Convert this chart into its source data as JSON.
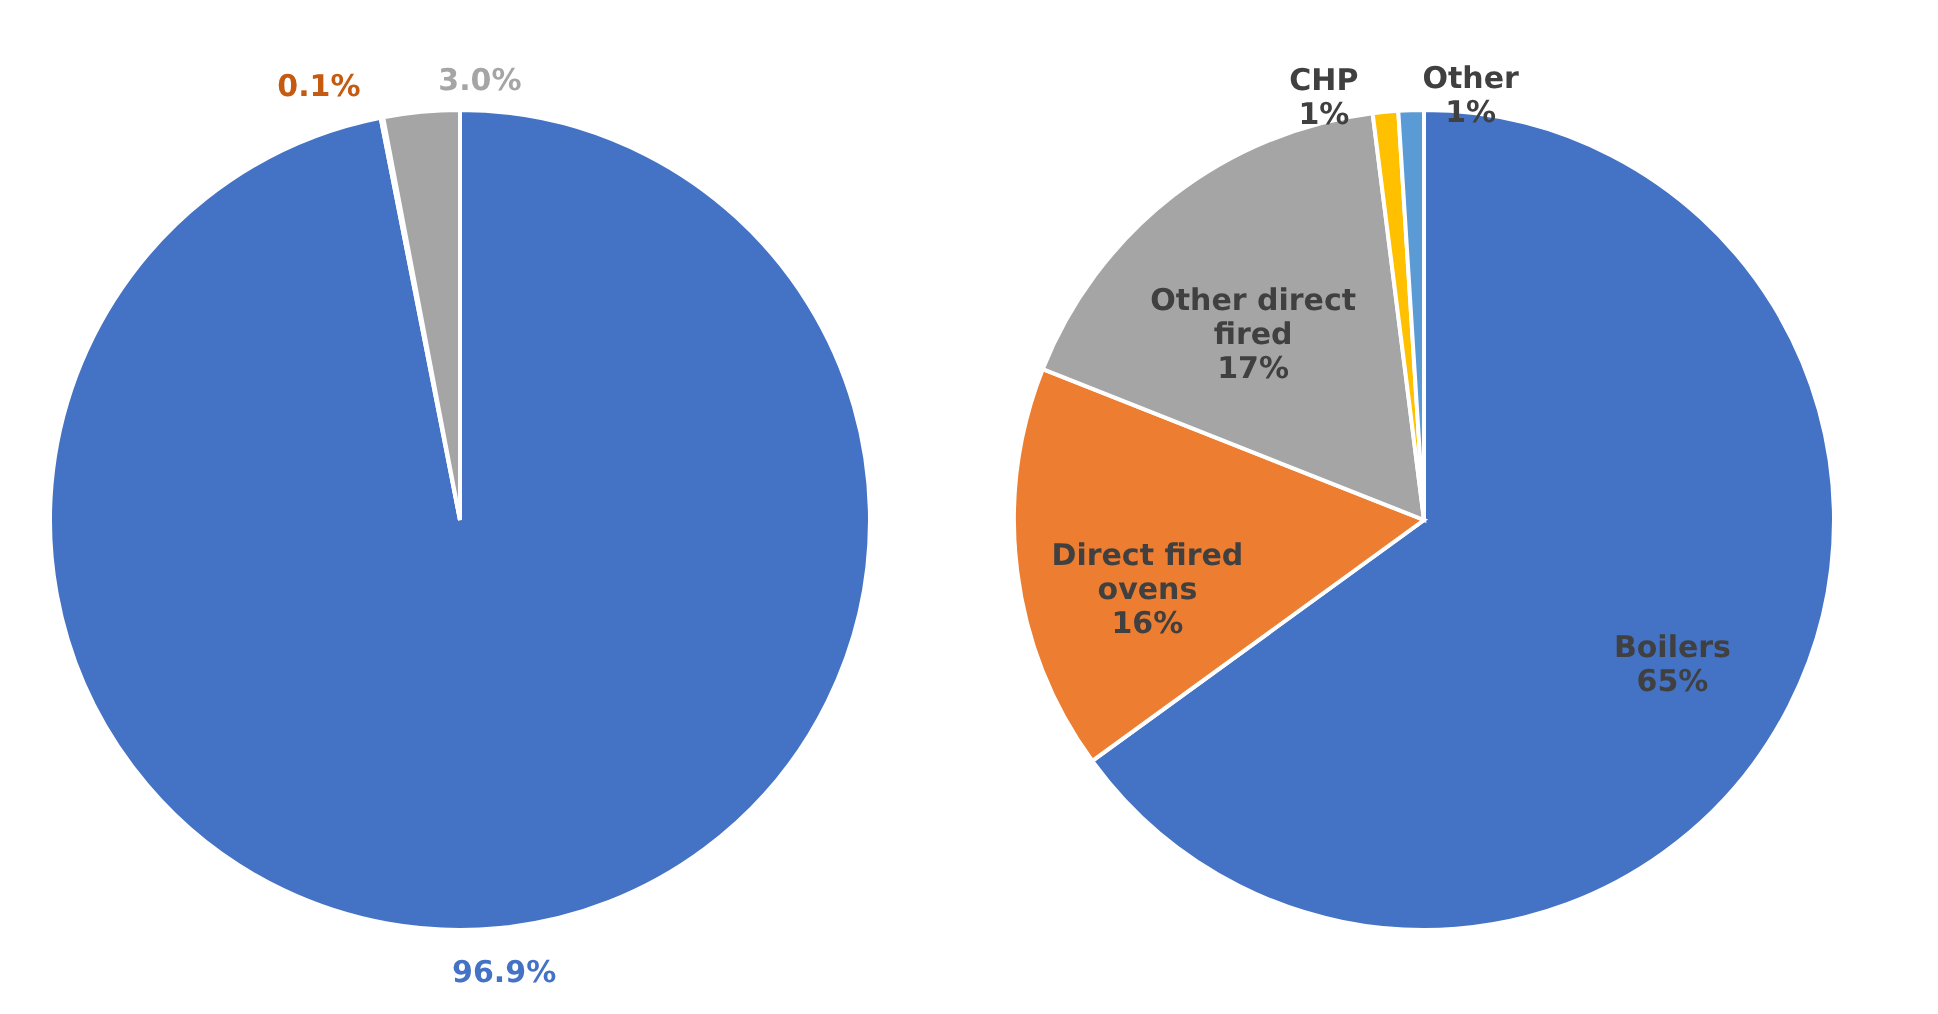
{
  "chart_data": [
    {
      "type": "pie",
      "categories": [
        null,
        null,
        null
      ],
      "values": [
        96.9,
        0.1,
        3.0
      ],
      "colors": [
        "#4472c4",
        "#c55a11",
        "#a5a5a5"
      ],
      "value_labels": [
        "96.9%",
        "0.1%",
        "3.0%"
      ]
    },
    {
      "type": "pie",
      "categories": [
        "Boilers",
        "Direct fired ovens",
        "Other direct fired",
        "CHP",
        "Other"
      ],
      "values": [
        65,
        16,
        17,
        1,
        1
      ],
      "colors": [
        "#4472c4",
        "#ed7d31",
        "#a5a5a5",
        "#ffc000",
        "#5b9bd5"
      ],
      "value_labels": [
        "65%",
        "16%",
        "17%",
        "1%",
        "1%"
      ]
    }
  ]
}
